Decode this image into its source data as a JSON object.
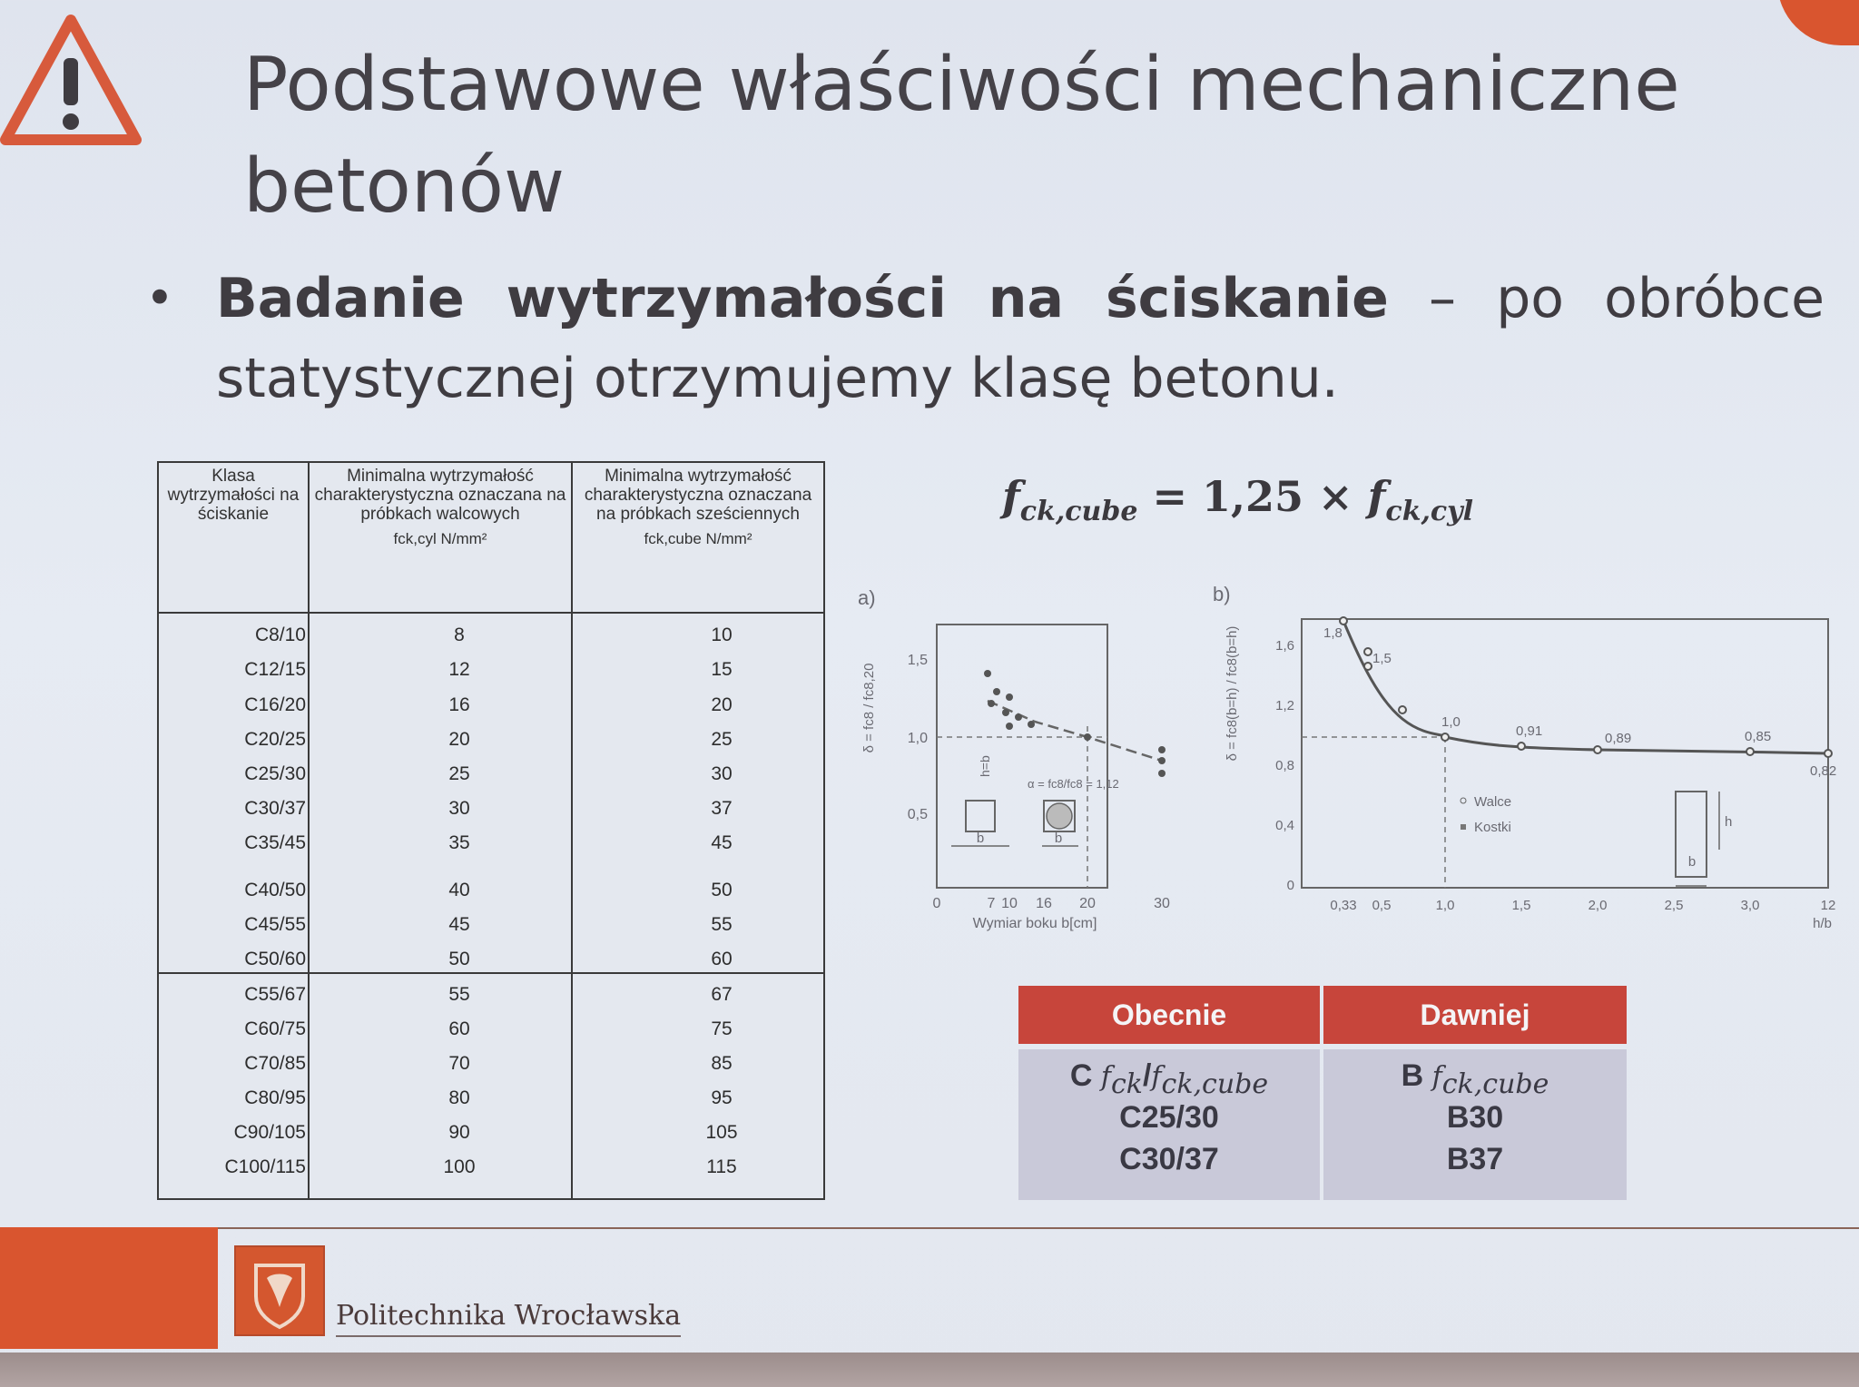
{
  "title": "Podstawowe właściwości mechaniczne betonów",
  "bullet": {
    "bold": "Badanie wytrzymałości na ściskanie",
    "rest": " – po obróbce statystycznej otrzymujemy klasę betonu."
  },
  "table": {
    "headers": [
      "Klasa wytrzymałości na ściskanie",
      "Minimalna wytrzymałość charakterystyczna oznaczana na próbkach walcowych",
      "Minimalna wytrzymałość charakterystyczna oznaczana na próbkach sześciennych"
    ],
    "header_symbols": [
      "",
      "fck,cyl N/mm²",
      "fck,cube N/mm²"
    ],
    "rows": [
      {
        "cls": "C8/10",
        "cyl": "8",
        "cube": "10"
      },
      {
        "cls": "C12/15",
        "cyl": "12",
        "cube": "15"
      },
      {
        "cls": "C16/20",
        "cyl": "16",
        "cube": "20"
      },
      {
        "cls": "C20/25",
        "cyl": "20",
        "cube": "25"
      },
      {
        "cls": "C25/30",
        "cyl": "25",
        "cube": "30"
      },
      {
        "cls": "C30/37",
        "cyl": "30",
        "cube": "37"
      },
      {
        "cls": "C35/45",
        "cyl": "35",
        "cube": "45"
      },
      {
        "cls": "C40/50",
        "cyl": "40",
        "cube": "50"
      },
      {
        "cls": "C45/55",
        "cyl": "45",
        "cube": "55"
      },
      {
        "cls": "C50/60",
        "cyl": "50",
        "cube": "60"
      },
      {
        "cls": "C55/67",
        "cyl": "55",
        "cube": "67"
      },
      {
        "cls": "C60/75",
        "cyl": "60",
        "cube": "75"
      },
      {
        "cls": "C70/85",
        "cyl": "70",
        "cube": "85"
      },
      {
        "cls": "C80/95",
        "cyl": "80",
        "cube": "95"
      },
      {
        "cls": "C90/105",
        "cyl": "90",
        "cube": "105"
      },
      {
        "cls": "C100/115",
        "cyl": "100",
        "cube": "115"
      }
    ]
  },
  "formula": {
    "lhs_f": "f",
    "lhs_sub": "ck,cube",
    "eq": " = 1,25 × ",
    "rhs_f": "f",
    "rhs_sub": "ck,cyl"
  },
  "chart_a": {
    "panel_label": "a)",
    "ylabel": "δ = fc8 / fc8,20",
    "xlabel": "Wymiar boku b[cm]",
    "y_ticks": [
      "0,5",
      "1,0",
      "1,5"
    ],
    "x_ticks": [
      "0",
      "7",
      "10",
      "16",
      "20",
      "30"
    ],
    "annotation": "α = fc8/fc8 = 1,12",
    "dim_h": "h=b",
    "dim_b": "b"
  },
  "chart_b": {
    "panel_label": "b)",
    "ylabel": "δ = fc8(b=h) / fc8(b=h)",
    "xlabel": "h/b",
    "y_ticks": [
      "0",
      "0,4",
      "0,8",
      "1,2",
      "1,6"
    ],
    "x_ticks": [
      "0,33",
      "0,5",
      "1,0",
      "1,5",
      "2,0",
      "2,5",
      "3,0",
      "12"
    ],
    "point_labels": [
      "1,8",
      "1,5",
      "1,0",
      "0,91",
      "0,89",
      "0,85",
      "0,82"
    ],
    "legend": [
      "Walce",
      "Kostki"
    ],
    "dim_h": "h",
    "dim_b": "b"
  },
  "compare": {
    "headers": [
      "Obecnie",
      "Dawniej"
    ],
    "left": {
      "prefix": "C",
      "f1": "f",
      "s1": "ck",
      "sep": "/",
      "f2": "f",
      "s2": "ck,cube",
      "rows": [
        "C25/30",
        "C30/37"
      ]
    },
    "right": {
      "prefix": "B",
      "f1": "f",
      "s1": "ck,cube",
      "rows": [
        "B30",
        "B37"
      ]
    }
  },
  "footer": {
    "institution": "Politechnika Wrocławska"
  },
  "colors": {
    "accent": "#d9552f",
    "table_header": "#c7453b",
    "table_body": "#c9c9d9"
  }
}
